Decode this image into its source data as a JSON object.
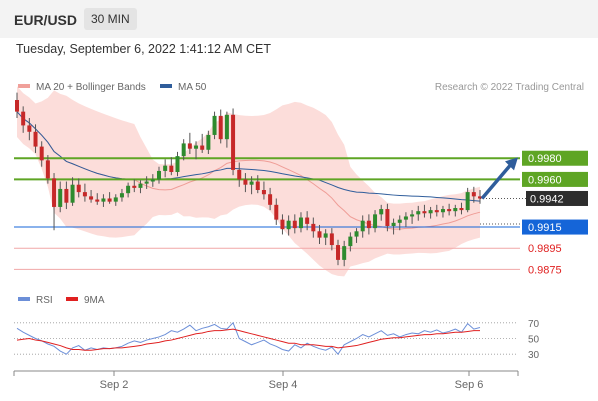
{
  "header": {
    "symbol": "EUR/USD",
    "timeframe": "30 MIN"
  },
  "datetime": "Tuesday, September 6, 2022 1:41:12 AM CET",
  "legend_main": [
    {
      "label": "MA 20 + Bollinger Bands",
      "color": "#f0a09a"
    },
    {
      "label": "MA 50",
      "color": "#2f5d9b"
    }
  ],
  "credit": "Research © 2022 Trading Central",
  "legend_rsi": [
    {
      "label": "RSI",
      "color": "#6c8fd8"
    },
    {
      "label": "9MA",
      "color": "#e02020"
    }
  ],
  "chart_data": [
    {
      "type": "candlestick",
      "instrument": "EUR/USD",
      "interval": "30 MIN",
      "x_ticks": [
        "Sep 2",
        "Sep 4",
        "Sep 6"
      ],
      "ylim": [
        0.9865,
        1.0035
      ],
      "last_price": 0.9942,
      "levels": [
        {
          "value": 0.998,
          "label": "0.9980",
          "type": "resistance",
          "color": "#5ea524"
        },
        {
          "value": 0.996,
          "label": "0.9960",
          "type": "resistance",
          "color": "#5ea524"
        },
        {
          "value": 0.9942,
          "label": "0.9942",
          "type": "last",
          "color": "#2d2d2d"
        },
        {
          "value": 0.9915,
          "label": "0.9915",
          "type": "pivot",
          "color": "#1565d8"
        },
        {
          "value": 0.9895,
          "label": "0.9895",
          "type": "support",
          "color": "#e02020"
        },
        {
          "value": 0.9875,
          "label": "0.9875",
          "type": "support",
          "color": "#e02020"
        }
      ],
      "candles": [
        [
          1.0035,
          1.0042,
          1.0018,
          1.0024
        ],
        [
          1.0024,
          1.0029,
          1.0004,
          1.0011
        ],
        [
          1.0011,
          1.0018,
          0.9997,
          1.0005
        ],
        [
          1.0005,
          1.0012,
          0.9985,
          0.9991
        ],
        [
          0.9991,
          0.9996,
          0.9972,
          0.9978
        ],
        [
          0.9978,
          0.9983,
          0.9956,
          0.9961
        ],
        [
          0.9961,
          0.9966,
          0.9912,
          0.9934
        ],
        [
          0.9934,
          0.9958,
          0.9929,
          0.9951
        ],
        [
          0.9951,
          0.9958,
          0.9932,
          0.9938
        ],
        [
          0.9938,
          0.9962,
          0.9935,
          0.9955
        ],
        [
          0.9955,
          0.9961,
          0.9943,
          0.9948
        ],
        [
          0.9948,
          0.9956,
          0.9939,
          0.9944
        ],
        [
          0.9944,
          0.995,
          0.9938,
          0.9941
        ],
        [
          0.9941,
          0.9947,
          0.9936,
          0.9939
        ],
        [
          0.9939,
          0.9946,
          0.9934,
          0.9942
        ],
        [
          0.9942,
          0.9948,
          0.9937,
          0.9939
        ],
        [
          0.9939,
          0.9946,
          0.9935,
          0.9943
        ],
        [
          0.9943,
          0.9951,
          0.9939,
          0.9947
        ],
        [
          0.9947,
          0.9957,
          0.9943,
          0.9954
        ],
        [
          0.9954,
          0.996,
          0.9948,
          0.9952
        ],
        [
          0.9952,
          0.9959,
          0.9947,
          0.9956
        ],
        [
          0.9956,
          0.9963,
          0.9951,
          0.9958
        ],
        [
          0.9958,
          0.9965,
          0.9953,
          0.996
        ],
        [
          0.996,
          0.9972,
          0.9956,
          0.9968
        ],
        [
          0.9968,
          0.9979,
          0.9962,
          0.9973
        ],
        [
          0.9973,
          0.9981,
          0.9964,
          0.9967
        ],
        [
          0.9967,
          0.9986,
          0.9963,
          0.9982
        ],
        [
          0.9982,
          0.9998,
          0.9978,
          0.9994
        ],
        [
          0.9994,
          1.0004,
          0.9984,
          0.9989
        ],
        [
          0.9989,
          0.9996,
          0.9979,
          0.9992
        ],
        [
          0.9992,
          1.0003,
          0.9985,
          0.9988
        ],
        [
          0.9988,
          1.0006,
          0.9984,
          1.0002
        ],
        [
          1.0002,
          1.0024,
          0.9998,
          1.002
        ],
        [
          1.002,
          1.0026,
          0.9994,
          0.9998
        ],
        [
          0.9998,
          1.0024,
          0.999,
          1.0021
        ],
        [
          1.0021,
          1.0027,
          0.9964,
          0.9969
        ],
        [
          0.9969,
          0.9976,
          0.9953,
          0.996
        ],
        [
          0.996,
          0.9966,
          0.9948,
          0.9955
        ],
        [
          0.9955,
          0.9963,
          0.9946,
          0.9958
        ],
        [
          0.9958,
          0.9964,
          0.9947,
          0.995
        ],
        [
          0.995,
          0.9958,
          0.9941,
          0.9946
        ],
        [
          0.9946,
          0.9952,
          0.9931,
          0.9936
        ],
        [
          0.9936,
          0.9942,
          0.9917,
          0.9922
        ],
        [
          0.9922,
          0.9927,
          0.9908,
          0.9913
        ],
        [
          0.9913,
          0.9926,
          0.9907,
          0.9921
        ],
        [
          0.9921,
          0.9927,
          0.9909,
          0.9914
        ],
        [
          0.9914,
          0.9929,
          0.991,
          0.9924
        ],
        [
          0.9924,
          0.993,
          0.9912,
          0.9918
        ],
        [
          0.9918,
          0.9924,
          0.9905,
          0.9911
        ],
        [
          0.9911,
          0.9917,
          0.9899,
          0.9905
        ],
        [
          0.9905,
          0.9913,
          0.9898,
          0.9909
        ],
        [
          0.9909,
          0.9914,
          0.9893,
          0.9898
        ],
        [
          0.9898,
          0.9903,
          0.9879,
          0.9884
        ],
        [
          0.9884,
          0.9902,
          0.9878,
          0.9897
        ],
        [
          0.9897,
          0.991,
          0.9892,
          0.9906
        ],
        [
          0.9906,
          0.9914,
          0.99,
          0.9911
        ],
        [
          0.9911,
          0.9926,
          0.9905,
          0.9921
        ],
        [
          0.9921,
          0.9927,
          0.9908,
          0.9914
        ],
        [
          0.9914,
          0.9931,
          0.991,
          0.9927
        ],
        [
          0.9927,
          0.9936,
          0.9921,
          0.9932
        ],
        [
          0.9932,
          0.9937,
          0.9911,
          0.9916
        ],
        [
          0.9916,
          0.9923,
          0.9908,
          0.9919
        ],
        [
          0.9919,
          0.9926,
          0.9912,
          0.9922
        ],
        [
          0.9922,
          0.9929,
          0.9915,
          0.9925
        ],
        [
          0.9925,
          0.9931,
          0.9918,
          0.9927
        ],
        [
          0.9927,
          0.9935,
          0.9921,
          0.993
        ],
        [
          0.993,
          0.9936,
          0.9924,
          0.9928
        ],
        [
          0.9928,
          0.9934,
          0.9923,
          0.9931
        ],
        [
          0.9931,
          0.9936,
          0.9925,
          0.9929
        ],
        [
          0.9929,
          0.9935,
          0.9924,
          0.9932
        ],
        [
          0.9932,
          0.9937,
          0.9926,
          0.993
        ],
        [
          0.993,
          0.9936,
          0.9925,
          0.9933
        ],
        [
          0.9933,
          0.9938,
          0.9927,
          0.9931
        ],
        [
          0.9931,
          0.9952,
          0.9929,
          0.9948
        ],
        [
          0.9948,
          0.9953,
          0.9938,
          0.9944
        ],
        [
          0.9944,
          0.995,
          0.9937,
          0.9942
        ]
      ]
    },
    {
      "type": "line",
      "series": [
        {
          "name": "RSI",
          "values": [
            63,
            58,
            54,
            50,
            47,
            43,
            40,
            34,
            30,
            38,
            41,
            35,
            38,
            36,
            38,
            37,
            38,
            40,
            44,
            47,
            45,
            48,
            50,
            52,
            55,
            60,
            58,
            62,
            67,
            60,
            63,
            65,
            68,
            63,
            62,
            70,
            50,
            46,
            42,
            45,
            48,
            43,
            40,
            36,
            34,
            42,
            38,
            44,
            40,
            37,
            35,
            39,
            30,
            42,
            46,
            50,
            55,
            52,
            56,
            60,
            54,
            56,
            52,
            55,
            57,
            56,
            60,
            58,
            61,
            57,
            59,
            62,
            58,
            69,
            62,
            64
          ]
        },
        {
          "name": "9MA",
          "values": [
            48,
            49,
            50,
            48,
            47,
            45,
            43,
            41,
            38,
            36,
            36,
            35,
            35,
            36,
            37,
            37,
            38,
            38,
            39,
            40,
            41,
            43,
            44,
            45,
            47,
            48,
            50,
            52,
            54,
            56,
            57,
            59,
            60,
            60,
            61,
            62,
            60,
            58,
            56,
            54,
            52,
            50,
            48,
            46,
            44,
            44,
            42,
            42,
            42,
            41,
            40,
            40,
            38,
            39,
            40,
            41,
            43,
            45,
            47,
            49,
            50,
            51,
            51,
            52,
            53,
            54,
            55,
            55,
            56,
            56,
            57,
            58,
            58,
            59,
            60,
            60
          ]
        }
      ],
      "y_ticks": [
        70,
        50,
        30
      ],
      "ylim": [
        20,
        80
      ]
    }
  ]
}
